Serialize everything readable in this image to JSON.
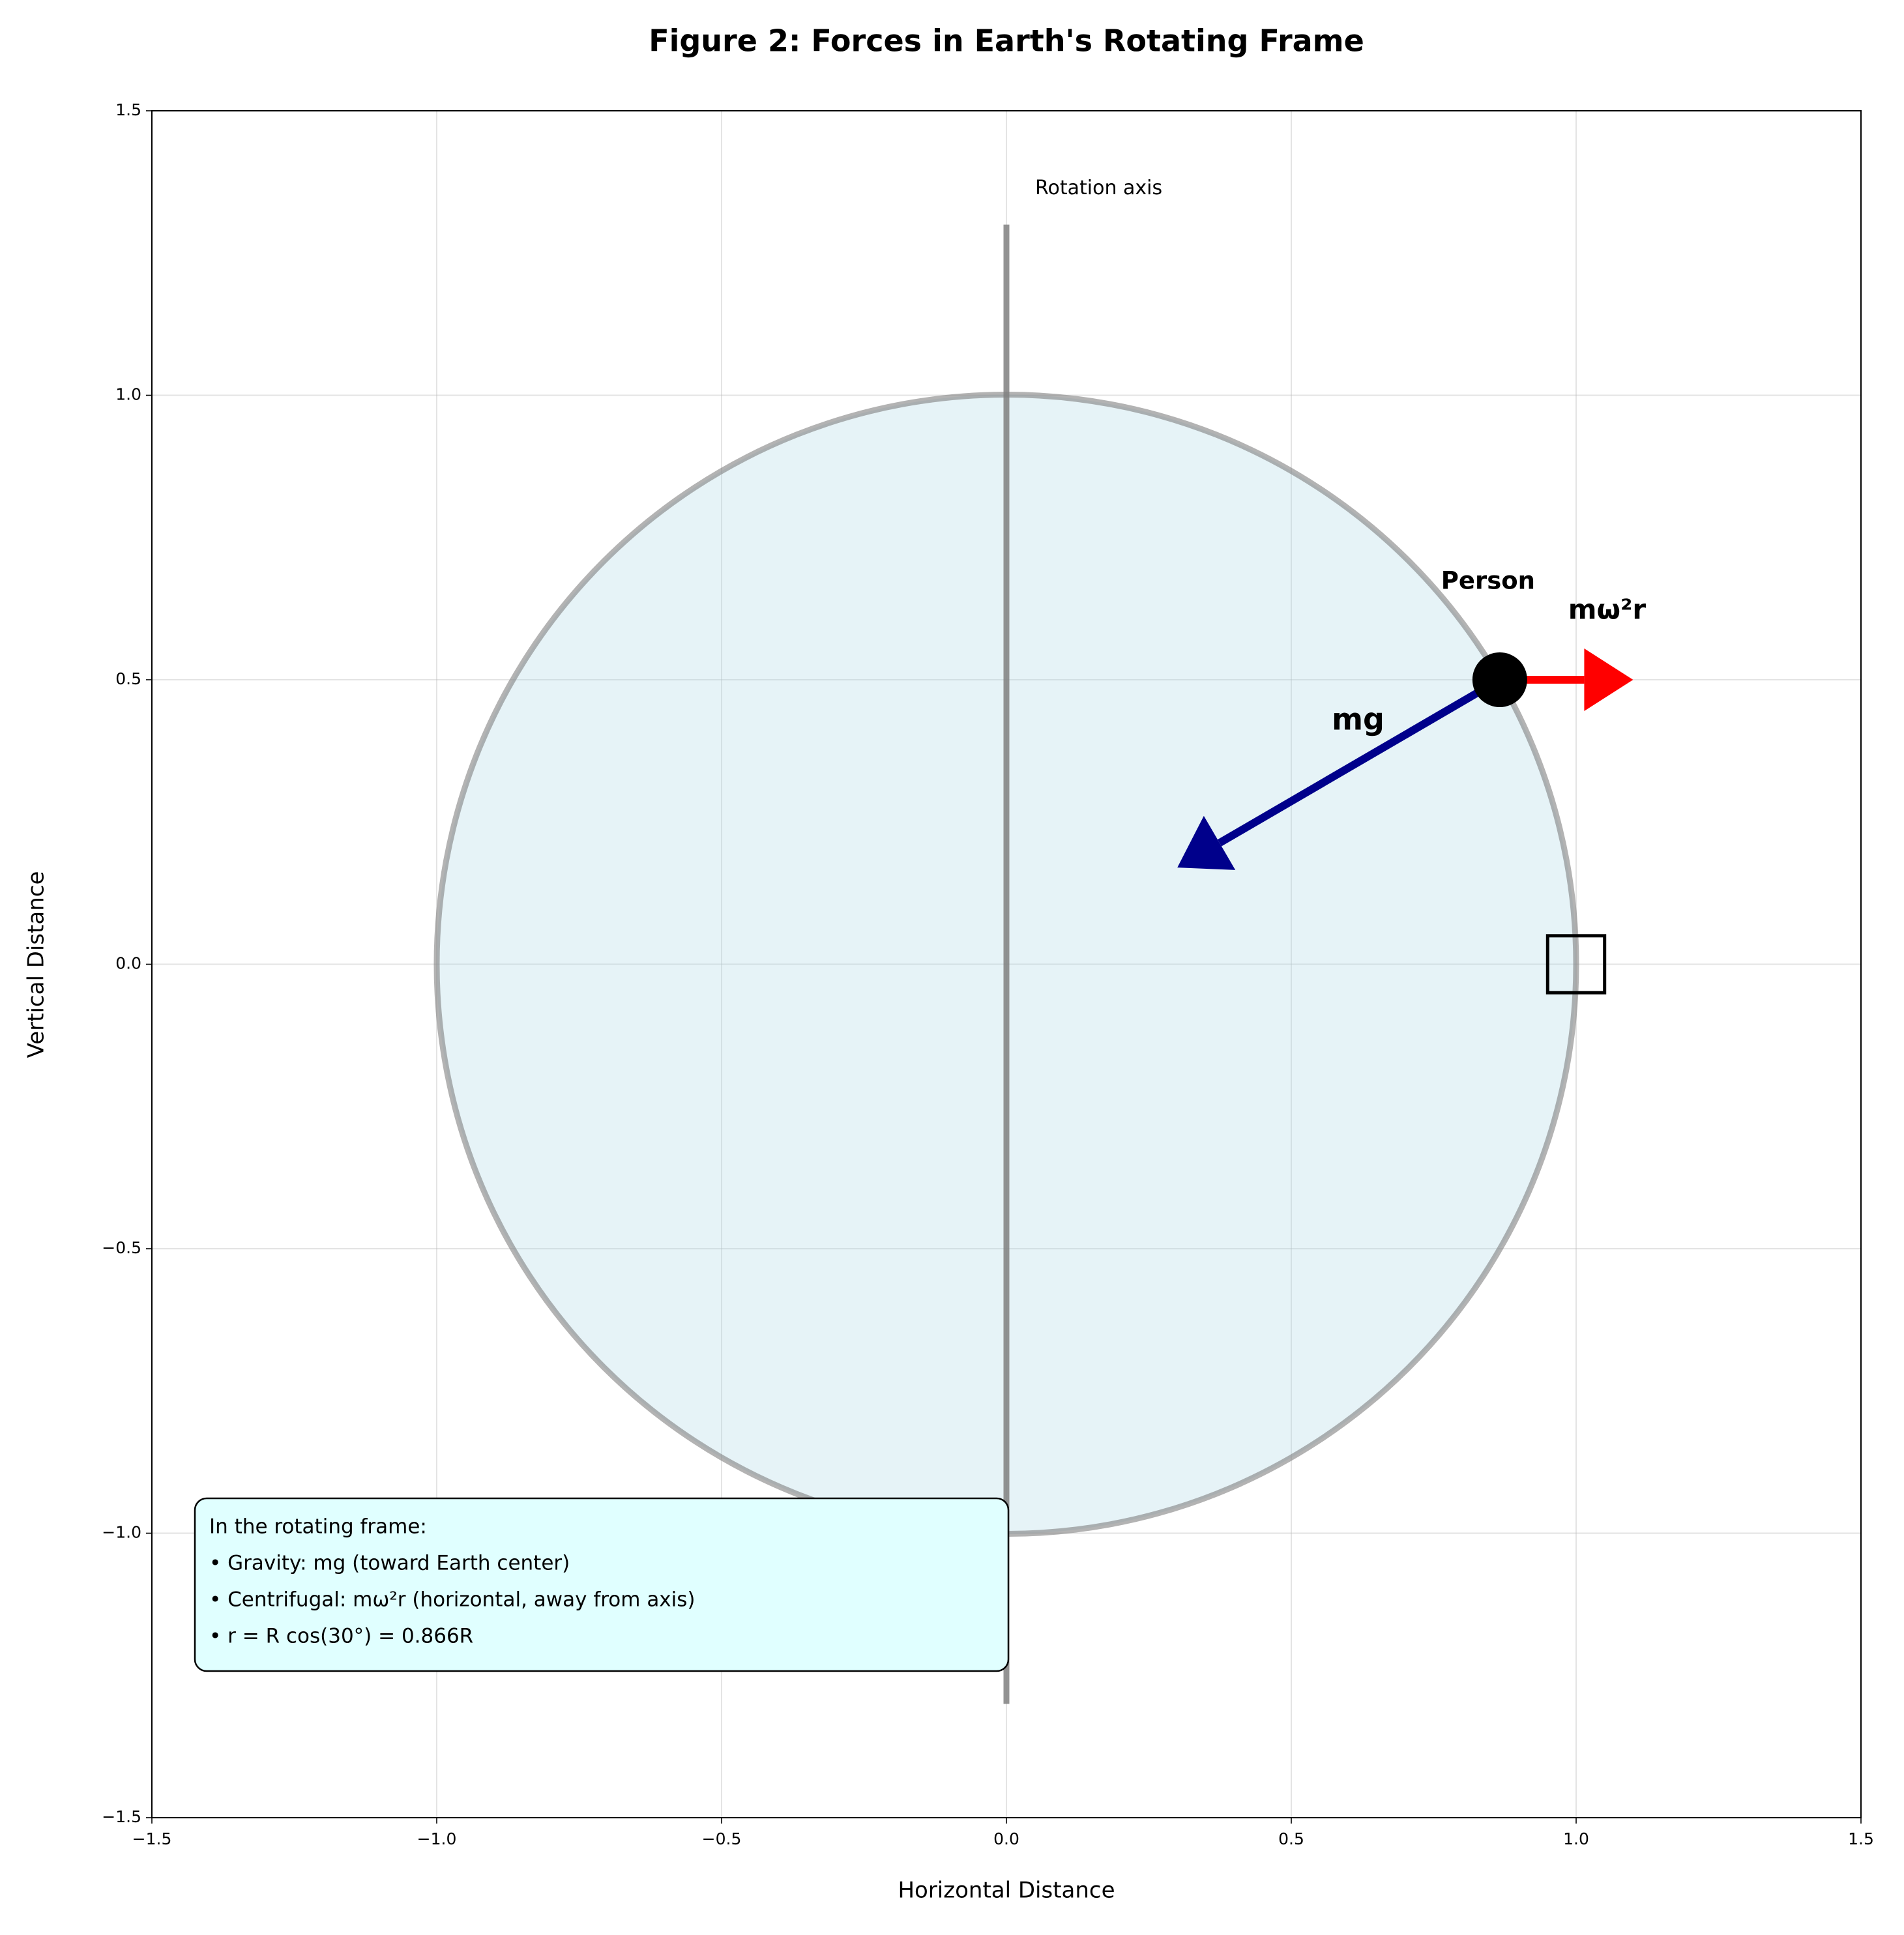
{
  "chart_data": {
    "type": "force-diagram",
    "title": "Figure 2: Forces in Earth's Rotating Frame",
    "xlabel": "Horizontal Distance",
    "ylabel": "Vertical Distance",
    "xlim": [
      -1.5,
      1.5
    ],
    "ylim": [
      -1.5,
      1.5
    ],
    "xticks": [
      {
        "value": -1.5,
        "label": "−1.5"
      },
      {
        "value": -1.0,
        "label": "−1.0"
      },
      {
        "value": -0.5,
        "label": "−0.5"
      },
      {
        "value": 0,
        "label": "0.0"
      },
      0.5,
      {
        "value": 1,
        "label": "1.0"
      },
      1.5
    ],
    "yticks": [
      {
        "value": -1.5,
        "label": "−1.5"
      },
      {
        "value": -1.0,
        "label": "−1.0"
      },
      {
        "value": -0.5,
        "label": "−0.5"
      },
      {
        "value": 0,
        "label": "0.0"
      },
      0.5,
      {
        "value": 1,
        "label": "1.0"
      },
      1.5
    ],
    "grid": true,
    "earth": {
      "x": 0,
      "y": 0,
      "radius": 1,
      "color": "#add8e6",
      "edge_color": "#808080"
    },
    "rotation_axis": {
      "x": 0,
      "y": [
        -1.3,
        1.3
      ],
      "label": "Rotation axis",
      "color": "#808080"
    },
    "person": {
      "x": 0.866,
      "y": 0.5,
      "label": "Person",
      "color": "#000000"
    },
    "forces": [
      {
        "name": "mg",
        "color": "#00008b",
        "x": [
          0.866,
          0.3
        ],
        "y": [
          0.5,
          0.17
        ]
      },
      {
        "name": "mω²r",
        "color": "#ff0000",
        "x": [
          0.866,
          1.1
        ],
        "y": [
          0.5,
          0.5
        ]
      }
    ],
    "marker": {
      "x": 1,
      "y": 0,
      "size": 0.1
    },
    "note": [
      "In the rotating frame:",
      "• Gravity: mg (toward Earth center)",
      "• Centrifugal: mω²r (horizontal, away from axis)",
      "• r = R cos(30°) = 0.866R"
    ]
  }
}
